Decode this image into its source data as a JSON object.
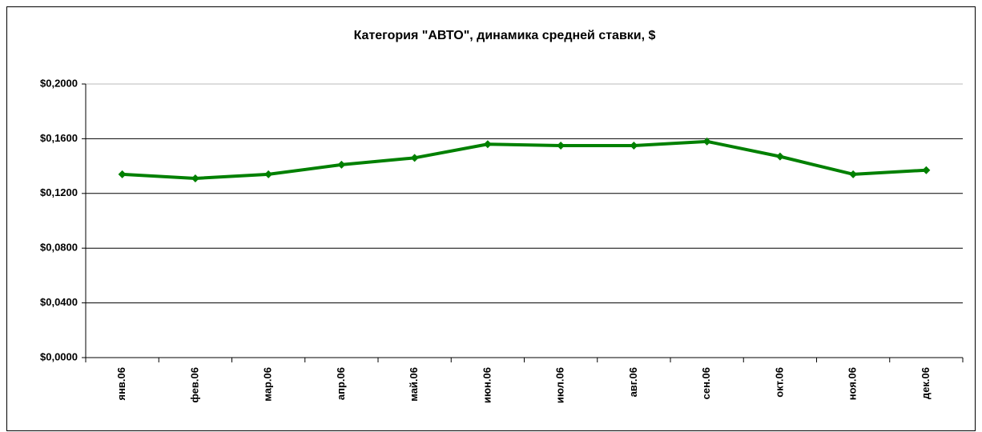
{
  "chart_data": {
    "type": "line",
    "title": "Категория \"АВТО\", динамика средней ставки, $",
    "categories": [
      "янв.06",
      "фев.06",
      "мар.06",
      "апр.06",
      "май.06",
      "июн.06",
      "июл.06",
      "авг.06",
      "сен.06",
      "окт.06",
      "ноя.06",
      "дек.06"
    ],
    "series": [
      {
        "color": "#008000",
        "values": [
          0.134,
          0.131,
          0.134,
          0.141,
          0.146,
          0.156,
          0.155,
          0.155,
          0.158,
          0.147,
          0.134,
          0.137
        ]
      }
    ],
    "ylim": [
      0,
      0.2
    ],
    "yticks": [
      {
        "value": 0,
        "label": "$0,0000"
      },
      {
        "value": 0.04,
        "label": "$0,0400"
      },
      {
        "value": 0.08,
        "label": "$0,0800"
      },
      {
        "value": 0.12,
        "label": "$0,1200"
      },
      {
        "value": 0.16,
        "label": "$0,1600"
      },
      {
        "value": 0.2,
        "label": "$0,2000"
      }
    ],
    "grid": true
  }
}
